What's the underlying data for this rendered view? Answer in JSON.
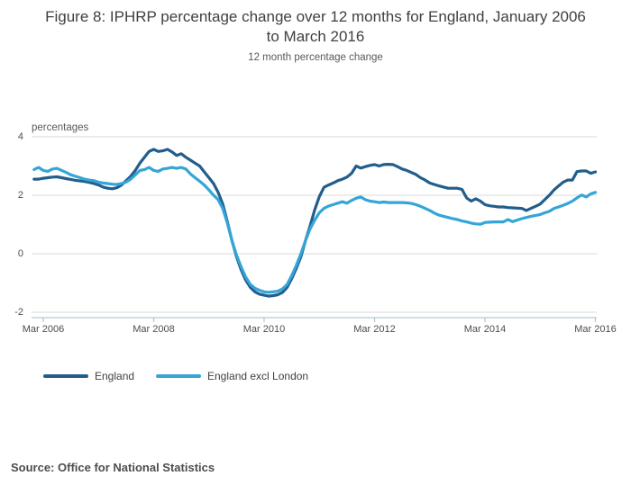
{
  "figure": {
    "title": "Figure 8: IPHRP percentage change over 12 months for England, January 2006 to March 2016",
    "subtitle": "12 month percentage change"
  },
  "source_note": "Source: Office for National Statistics",
  "colors": {
    "england_line": "#225e8b",
    "england_excl_london_line": "#34a5d6",
    "gridline": "#d9d9d9",
    "axis_line": "#b6c8d2",
    "tick_text": "#4d4d4d",
    "title_text": "#3f4044"
  },
  "legend": [
    {
      "label": "England",
      "color": "#225e8b"
    },
    {
      "label": "England excl London",
      "color": "#34a5d6"
    }
  ],
  "chart_data": {
    "type": "line",
    "title": "Figure 8: IPHRP percentage change over 12 months for England, January 2006 to March 2016",
    "subtitle": "12 month percentage change",
    "ylabel": "percentages",
    "xlabel": "",
    "x_start": "Jan 2006",
    "x_end": "Mar 2016",
    "x_interval": "monthly",
    "x_tick_labels": [
      "Mar 2006",
      "Mar 2008",
      "Mar 2010",
      "Mar 2012",
      "Mar 2014",
      "Mar 2016"
    ],
    "x_tick_month_indexes": [
      2,
      26,
      50,
      74,
      98,
      122
    ],
    "y_tick_labels": [
      "4",
      "2",
      "0",
      "-2"
    ],
    "y_tick_values": [
      4,
      2,
      0,
      -2
    ],
    "ylim": [
      -2,
      4.3
    ],
    "grid": "horizontal",
    "legend_position": "bottom-left",
    "series": [
      {
        "name": "England",
        "color": "#225e8b",
        "values": [
          2.55,
          2.55,
          2.58,
          2.6,
          2.62,
          2.63,
          2.6,
          2.57,
          2.54,
          2.51,
          2.49,
          2.47,
          2.44,
          2.4,
          2.35,
          2.28,
          2.24,
          2.22,
          2.26,
          2.35,
          2.5,
          2.65,
          2.85,
          3.1,
          3.3,
          3.5,
          3.57,
          3.5,
          3.52,
          3.57,
          3.48,
          3.36,
          3.42,
          3.3,
          3.2,
          3.1,
          3.0,
          2.8,
          2.6,
          2.4,
          2.1,
          1.7,
          1.1,
          0.45,
          -0.1,
          -0.55,
          -0.9,
          -1.15,
          -1.3,
          -1.38,
          -1.42,
          -1.45,
          -1.43,
          -1.4,
          -1.32,
          -1.15,
          -0.85,
          -0.5,
          -0.1,
          0.45,
          0.95,
          1.5,
          1.95,
          2.27,
          2.35,
          2.42,
          2.5,
          2.55,
          2.62,
          2.75,
          3.0,
          2.93,
          2.98,
          3.02,
          3.05,
          3.0,
          3.05,
          3.06,
          3.05,
          2.98,
          2.9,
          2.85,
          2.78,
          2.71,
          2.6,
          2.52,
          2.42,
          2.37,
          2.32,
          2.28,
          2.24,
          2.24,
          2.24,
          2.2,
          1.91,
          1.8,
          1.88,
          1.8,
          1.68,
          1.64,
          1.62,
          1.6,
          1.6,
          1.58,
          1.57,
          1.56,
          1.55,
          1.48,
          1.55,
          1.62,
          1.7,
          1.85,
          2.0,
          2.18,
          2.32,
          2.45,
          2.52,
          2.52,
          2.81,
          2.83,
          2.83,
          2.75,
          2.8
        ]
      },
      {
        "name": "England excl London",
        "color": "#34a5d6",
        "values": [
          2.88,
          2.95,
          2.85,
          2.82,
          2.9,
          2.92,
          2.85,
          2.78,
          2.7,
          2.65,
          2.6,
          2.55,
          2.52,
          2.5,
          2.45,
          2.42,
          2.4,
          2.38,
          2.37,
          2.4,
          2.45,
          2.55,
          2.7,
          2.85,
          2.88,
          2.95,
          2.85,
          2.82,
          2.9,
          2.92,
          2.95,
          2.92,
          2.95,
          2.9,
          2.73,
          2.6,
          2.48,
          2.35,
          2.18,
          2.0,
          1.85,
          1.55,
          1.05,
          0.45,
          -0.05,
          -0.45,
          -0.8,
          -1.05,
          -1.18,
          -1.25,
          -1.3,
          -1.32,
          -1.3,
          -1.28,
          -1.2,
          -1.05,
          -0.75,
          -0.4,
          0.0,
          0.45,
          0.85,
          1.15,
          1.4,
          1.55,
          1.63,
          1.68,
          1.73,
          1.78,
          1.73,
          1.82,
          1.9,
          1.94,
          1.85,
          1.8,
          1.78,
          1.75,
          1.77,
          1.75,
          1.75,
          1.75,
          1.75,
          1.74,
          1.72,
          1.68,
          1.62,
          1.55,
          1.48,
          1.39,
          1.32,
          1.28,
          1.24,
          1.2,
          1.17,
          1.12,
          1.09,
          1.05,
          1.02,
          1.01,
          1.07,
          1.08,
          1.09,
          1.09,
          1.09,
          1.17,
          1.1,
          1.15,
          1.2,
          1.24,
          1.28,
          1.31,
          1.34,
          1.4,
          1.45,
          1.55,
          1.6,
          1.66,
          1.72,
          1.8,
          1.91,
          2.01,
          1.94,
          2.05,
          2.1
        ]
      }
    ]
  }
}
